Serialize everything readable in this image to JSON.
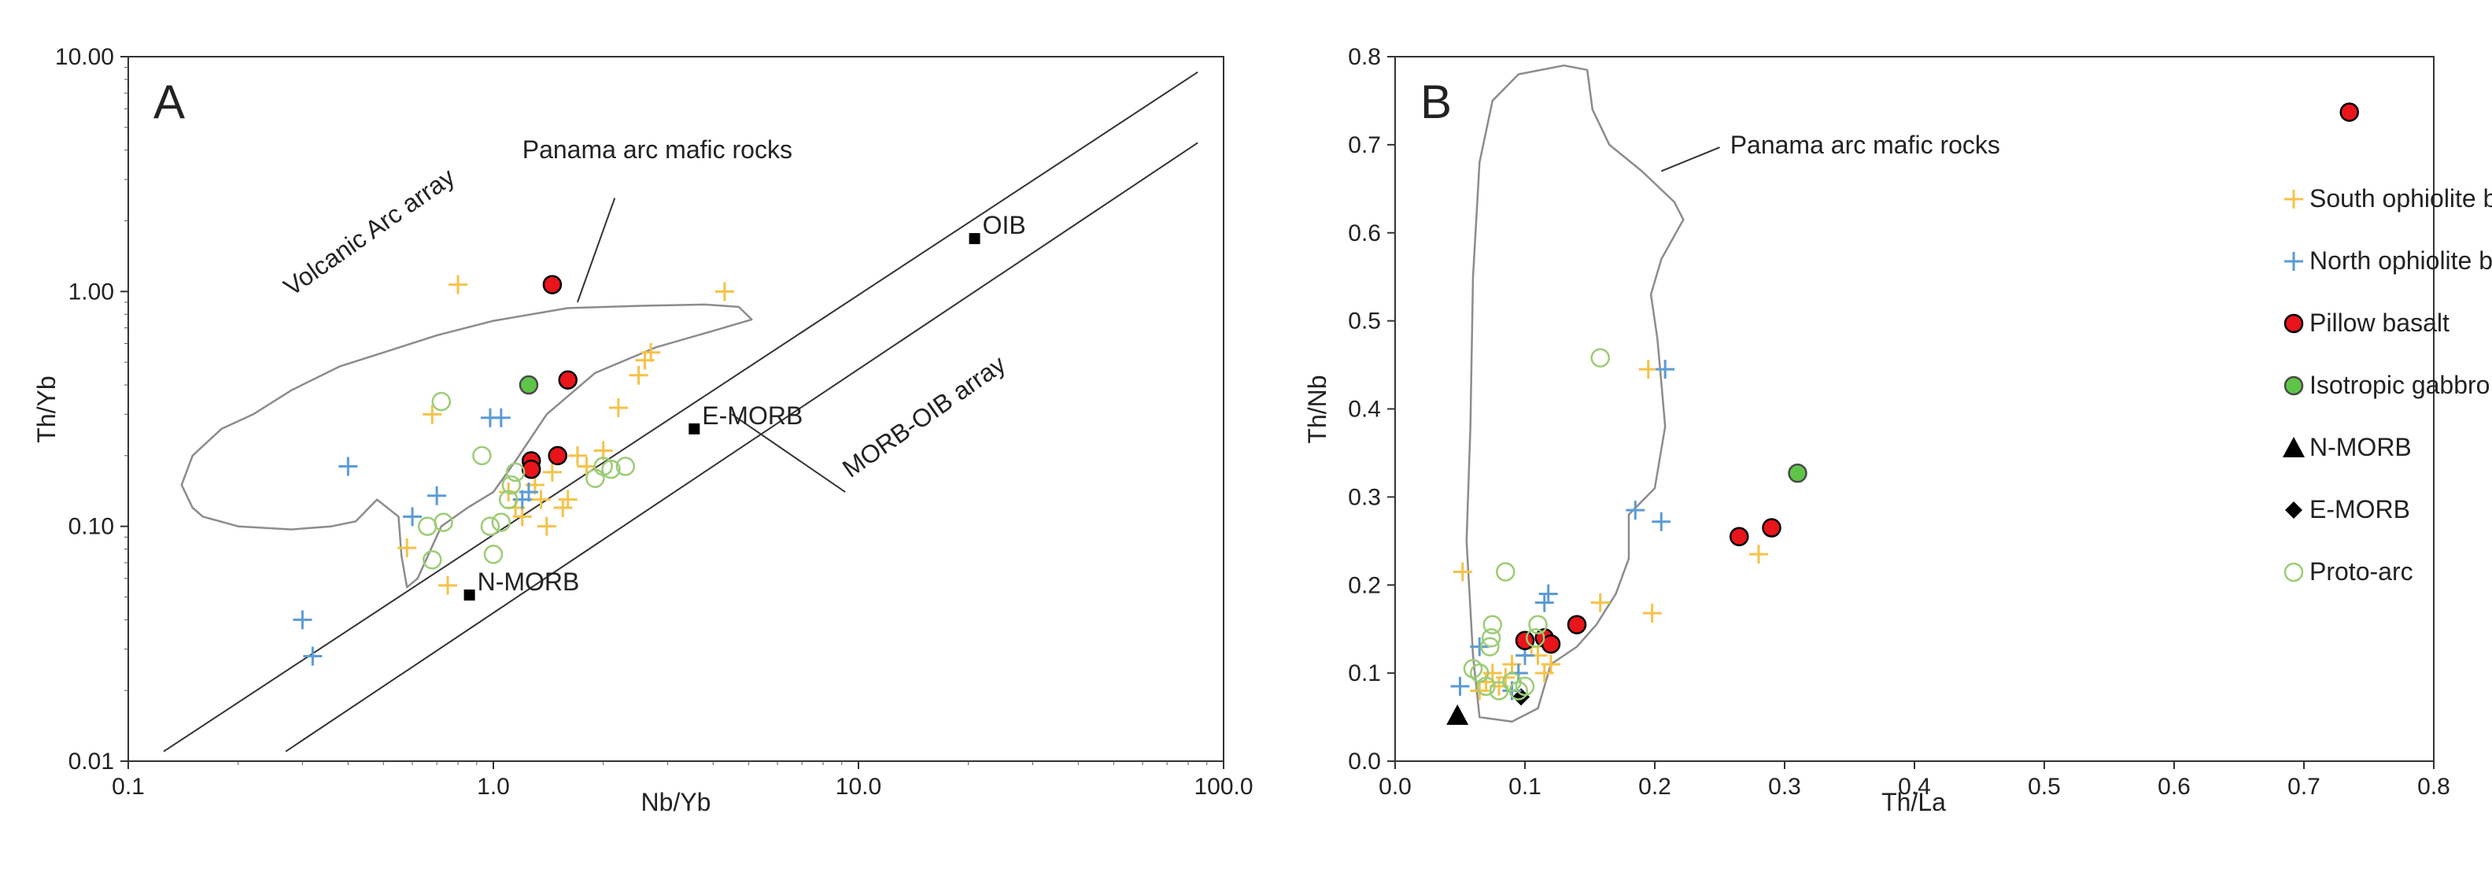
{
  "chart_data": [
    {
      "panel": "A",
      "type": "scatter",
      "xscale": "log",
      "yscale": "log",
      "xlabel": "Nb/Yb",
      "ylabel": "Th/Yb",
      "xlim": [
        0.1,
        100
      ],
      "ylim": [
        0.01,
        10
      ],
      "xticks": [
        {
          "v": 0.1,
          "label": "0.1"
        },
        {
          "v": 1,
          "label": "1.0"
        },
        {
          "v": 10,
          "label": "10.0"
        },
        {
          "v": 100,
          "label": "100.0"
        }
      ],
      "yticks": [
        {
          "v": 0.01,
          "label": "0.01"
        },
        {
          "v": 0.1,
          "label": "0.10"
        },
        {
          "v": 1,
          "label": "1.00"
        },
        {
          "v": 10,
          "label": "10.00"
        }
      ],
      "arrays": [
        {
          "name": "Volcanic Arc array",
          "from": [
            0.125,
            0.011
          ],
          "to": [
            85,
            8.6
          ]
        },
        {
          "name": "MORB-OIB array",
          "from": [
            0.27,
            0.011
          ],
          "to": [
            85,
            4.3
          ]
        }
      ],
      "envelope": {
        "name": "Panama arc mafic rocks",
        "points": [
          [
            0.15,
            0.12
          ],
          [
            0.14,
            0.15
          ],
          [
            0.15,
            0.2
          ],
          [
            0.18,
            0.26
          ],
          [
            0.22,
            0.3
          ],
          [
            0.28,
            0.38
          ],
          [
            0.38,
            0.48
          ],
          [
            0.5,
            0.55
          ],
          [
            0.7,
            0.65
          ],
          [
            1.0,
            0.75
          ],
          [
            1.6,
            0.85
          ],
          [
            2.6,
            0.87
          ],
          [
            3.8,
            0.88
          ],
          [
            4.7,
            0.86
          ],
          [
            5.1,
            0.76
          ],
          [
            4.0,
            0.68
          ],
          [
            2.8,
            0.58
          ],
          [
            1.9,
            0.45
          ],
          [
            1.4,
            0.3
          ],
          [
            1.15,
            0.19
          ],
          [
            1.0,
            0.14
          ],
          [
            0.85,
            0.12
          ],
          [
            0.72,
            0.1
          ],
          [
            0.62,
            0.06
          ],
          [
            0.58,
            0.055
          ],
          [
            0.56,
            0.075
          ],
          [
            0.55,
            0.11
          ],
          [
            0.48,
            0.13
          ],
          [
            0.42,
            0.105
          ],
          [
            0.36,
            0.1
          ],
          [
            0.28,
            0.097
          ],
          [
            0.2,
            0.1
          ],
          [
            0.16,
            0.11
          ],
          [
            0.15,
            0.12
          ]
        ]
      },
      "annotations": [
        {
          "text": "Volcanic Arc array",
          "at": [
            0.28,
            0.95
          ],
          "rotate": -35
        },
        {
          "text": "Panama arc mafic rocks",
          "at": [
            1.2,
            3.7
          ],
          "leader": [
            [
              2.15,
              2.5
            ],
            [
              1.7,
              0.9
            ]
          ]
        },
        {
          "text": "MORB-OIB array",
          "at": [
            9.5,
            0.16
          ],
          "rotate": -35,
          "leader": [
            [
              4.5,
              0.3
            ],
            [
              9.2,
              0.14
            ]
          ]
        }
      ],
      "references": [
        {
          "name": "N-MORB",
          "x": 0.86,
          "y": 0.051,
          "marker": "square",
          "label": "N-MORB"
        },
        {
          "name": "E-MORB",
          "x": 3.55,
          "y": 0.26,
          "marker": "square",
          "label": "E-MORB"
        },
        {
          "name": "OIB",
          "x": 20.8,
          "y": 1.68,
          "marker": "square",
          "label": "OIB"
        }
      ],
      "series": [
        {
          "name": "South ophiolite belt",
          "points": [
            [
              0.58,
              0.081
            ],
            [
              0.68,
              0.3
            ],
            [
              0.75,
              0.056
            ],
            [
              0.8,
              1.07
            ],
            [
              1.1,
              0.14
            ],
            [
              1.15,
              0.12
            ],
            [
              1.2,
              0.11
            ],
            [
              1.3,
              0.15
            ],
            [
              1.35,
              0.13
            ],
            [
              1.4,
              0.1
            ],
            [
              1.45,
              0.17
            ],
            [
              1.55,
              0.12
            ],
            [
              1.6,
              0.13
            ],
            [
              1.7,
              0.2
            ],
            [
              1.8,
              0.18
            ],
            [
              2.0,
              0.21
            ],
            [
              2.2,
              0.32
            ],
            [
              2.5,
              0.44
            ],
            [
              2.6,
              0.51
            ],
            [
              2.7,
              0.55
            ],
            [
              4.3,
              1.0
            ]
          ]
        },
        {
          "name": "North ophiolite belt",
          "points": [
            [
              0.3,
              0.04
            ],
            [
              0.32,
              0.028
            ],
            [
              0.4,
              0.18
            ],
            [
              0.6,
              0.11
            ],
            [
              0.7,
              0.135
            ],
            [
              0.98,
              0.29
            ],
            [
              1.05,
              0.29
            ],
            [
              1.2,
              0.13
            ],
            [
              1.25,
              0.14
            ]
          ]
        },
        {
          "name": "Pillow basalt",
          "points": [
            [
              1.27,
              0.19
            ],
            [
              1.27,
              0.175
            ],
            [
              1.45,
              1.07
            ],
            [
              1.5,
              0.2
            ],
            [
              1.6,
              0.42
            ]
          ]
        },
        {
          "name": "Isotropic gabbro",
          "points": [
            [
              1.25,
              0.4
            ]
          ]
        },
        {
          "name": "Proto-arc",
          "points": [
            [
              0.66,
              0.1
            ],
            [
              0.68,
              0.072
            ],
            [
              0.72,
              0.34
            ],
            [
              0.73,
              0.104
            ],
            [
              0.93,
              0.2
            ],
            [
              0.98,
              0.1
            ],
            [
              1.0,
              0.076
            ],
            [
              1.05,
              0.104
            ],
            [
              1.1,
              0.13
            ],
            [
              1.12,
              0.15
            ],
            [
              1.15,
              0.17
            ],
            [
              1.9,
              0.16
            ],
            [
              2.0,
              0.18
            ],
            [
              2.1,
              0.175
            ],
            [
              2.3,
              0.18
            ]
          ]
        }
      ]
    },
    {
      "panel": "B",
      "type": "scatter",
      "xlabel": "Th/La",
      "ylabel": "Th/Nb",
      "xlim": [
        0,
        0.8
      ],
      "ylim": [
        0,
        0.8
      ],
      "xticks": [
        {
          "v": 0,
          "label": "0.0"
        },
        {
          "v": 0.1,
          "label": "0.1"
        },
        {
          "v": 0.2,
          "label": "0.2"
        },
        {
          "v": 0.3,
          "label": "0.3"
        },
        {
          "v": 0.4,
          "label": "0.4"
        },
        {
          "v": 0.5,
          "label": "0.5"
        },
        {
          "v": 0.6,
          "label": "0.6"
        },
        {
          "v": 0.7,
          "label": "0.7"
        },
        {
          "v": 0.8,
          "label": "0.8"
        }
      ],
      "yticks": [
        {
          "v": 0,
          "label": "0.0"
        },
        {
          "v": 0.1,
          "label": "0.1"
        },
        {
          "v": 0.2,
          "label": "0.2"
        },
        {
          "v": 0.3,
          "label": "0.3"
        },
        {
          "v": 0.4,
          "label": "0.4"
        },
        {
          "v": 0.5,
          "label": "0.5"
        },
        {
          "v": 0.6,
          "label": "0.6"
        },
        {
          "v": 0.7,
          "label": "0.7"
        },
        {
          "v": 0.8,
          "label": "0.8"
        }
      ],
      "envelope": {
        "name": "Panama arc mafic rocks",
        "points": [
          [
            0.065,
            0.05
          ],
          [
            0.06,
            0.12
          ],
          [
            0.055,
            0.25
          ],
          [
            0.058,
            0.38
          ],
          [
            0.06,
            0.55
          ],
          [
            0.065,
            0.68
          ],
          [
            0.075,
            0.75
          ],
          [
            0.095,
            0.78
          ],
          [
            0.13,
            0.79
          ],
          [
            0.148,
            0.785
          ],
          [
            0.152,
            0.74
          ],
          [
            0.165,
            0.7
          ],
          [
            0.19,
            0.67
          ],
          [
            0.215,
            0.635
          ],
          [
            0.222,
            0.615
          ],
          [
            0.205,
            0.57
          ],
          [
            0.197,
            0.53
          ],
          [
            0.202,
            0.48
          ],
          [
            0.205,
            0.43
          ],
          [
            0.208,
            0.38
          ],
          [
            0.2,
            0.31
          ],
          [
            0.18,
            0.28
          ],
          [
            0.18,
            0.23
          ],
          [
            0.17,
            0.19
          ],
          [
            0.155,
            0.155
          ],
          [
            0.14,
            0.13
          ],
          [
            0.12,
            0.11
          ],
          [
            0.11,
            0.06
          ],
          [
            0.09,
            0.045
          ],
          [
            0.065,
            0.05
          ]
        ]
      },
      "annotations": [
        {
          "text": "Panama arc mafic rocks",
          "at": [
            0.258,
            0.69
          ],
          "leader": [
            [
              0.205,
              0.67
            ],
            [
              0.25,
              0.697
            ]
          ]
        }
      ],
      "references": [
        {
          "name": "N-MORB",
          "x": 0.048,
          "y": 0.052,
          "marker": "triangle"
        },
        {
          "name": "E-MORB",
          "x": 0.097,
          "y": 0.073,
          "marker": "diamond"
        }
      ],
      "series": [
        {
          "name": "South ophiolite belt",
          "points": [
            [
              0.052,
              0.215
            ],
            [
              0.065,
              0.08
            ],
            [
              0.07,
              0.09
            ],
            [
              0.075,
              0.1
            ],
            [
              0.08,
              0.085
            ],
            [
              0.085,
              0.095
            ],
            [
              0.09,
              0.11
            ],
            [
              0.095,
              0.1
            ],
            [
              0.1,
              0.12
            ],
            [
              0.105,
              0.13
            ],
            [
              0.11,
              0.12
            ],
            [
              0.115,
              0.1
            ],
            [
              0.12,
              0.11
            ],
            [
              0.158,
              0.18
            ],
            [
              0.195,
              0.445
            ],
            [
              0.198,
              0.168
            ],
            [
              0.28,
              0.235
            ]
          ]
        },
        {
          "name": "North ophiolite belt",
          "points": [
            [
              0.05,
              0.085
            ],
            [
              0.065,
              0.13
            ],
            [
              0.09,
              0.08
            ],
            [
              0.095,
              0.1
            ],
            [
              0.1,
              0.12
            ],
            [
              0.115,
              0.18
            ],
            [
              0.118,
              0.19
            ],
            [
              0.185,
              0.285
            ],
            [
              0.205,
              0.272
            ],
            [
              0.208,
              0.445
            ]
          ]
        },
        {
          "name": "Pillow basalt",
          "points": [
            [
              0.1,
              0.137
            ],
            [
              0.115,
              0.14
            ],
            [
              0.12,
              0.133
            ],
            [
              0.14,
              0.155
            ],
            [
              0.265,
              0.255
            ],
            [
              0.29,
              0.265
            ],
            [
              0.735,
              0.737
            ]
          ]
        },
        {
          "name": "Isotropic gabbro",
          "points": [
            [
              0.31,
              0.327
            ]
          ]
        },
        {
          "name": "Proto-arc",
          "points": [
            [
              0.06,
              0.105
            ],
            [
              0.065,
              0.1
            ],
            [
              0.07,
              0.085
            ],
            [
              0.073,
              0.13
            ],
            [
              0.074,
              0.14
            ],
            [
              0.075,
              0.155
            ],
            [
              0.08,
              0.08
            ],
            [
              0.085,
              0.215
            ],
            [
              0.09,
              0.09
            ],
            [
              0.095,
              0.08
            ],
            [
              0.1,
              0.085
            ],
            [
              0.108,
              0.14
            ],
            [
              0.11,
              0.155
            ],
            [
              0.158,
              0.458
            ]
          ]
        }
      ],
      "legend": {
        "placement": "right",
        "items": [
          {
            "name": "South ophiolite belt",
            "marker": "plus",
            "color": "#f5c24a",
            "label": "South ophiolite belt"
          },
          {
            "name": "North ophiolite belt",
            "marker": "plus",
            "color": "#5b9bd5",
            "label": "North ophiolite belt"
          },
          {
            "name": "Pillow basalt",
            "marker": "circle",
            "color": "#e8151b",
            "label": "Pillow basalt"
          },
          {
            "name": "Isotropic gabbro",
            "marker": "circle",
            "color": "#5ec549",
            "label": "Isotropic gabbro"
          },
          {
            "name": "N-MORB",
            "marker": "triangle",
            "color": "#000000",
            "label": "N-MORB"
          },
          {
            "name": "E-MORB",
            "marker": "diamond",
            "color": "#000000",
            "label": "E-MORB"
          },
          {
            "name": "Proto-arc",
            "marker": "open-circle",
            "color": "#9ccc75",
            "label": "Proto-arc"
          }
        ]
      }
    }
  ],
  "styles": {
    "South ophiolite belt": {
      "marker": "plus",
      "color": "#f5c24a"
    },
    "North ophiolite belt": {
      "marker": "plus",
      "color": "#5b9bd5"
    },
    "Pillow basalt": {
      "marker": "circle",
      "color": "#e8151b",
      "stroke": "#000000"
    },
    "Isotropic gabbro": {
      "marker": "circle",
      "color": "#5ec549",
      "stroke": "#4a4a4a"
    },
    "Proto-arc": {
      "marker": "open-circle",
      "color": "#9ccc75"
    },
    "envelope_color": "#8c8c8c"
  }
}
